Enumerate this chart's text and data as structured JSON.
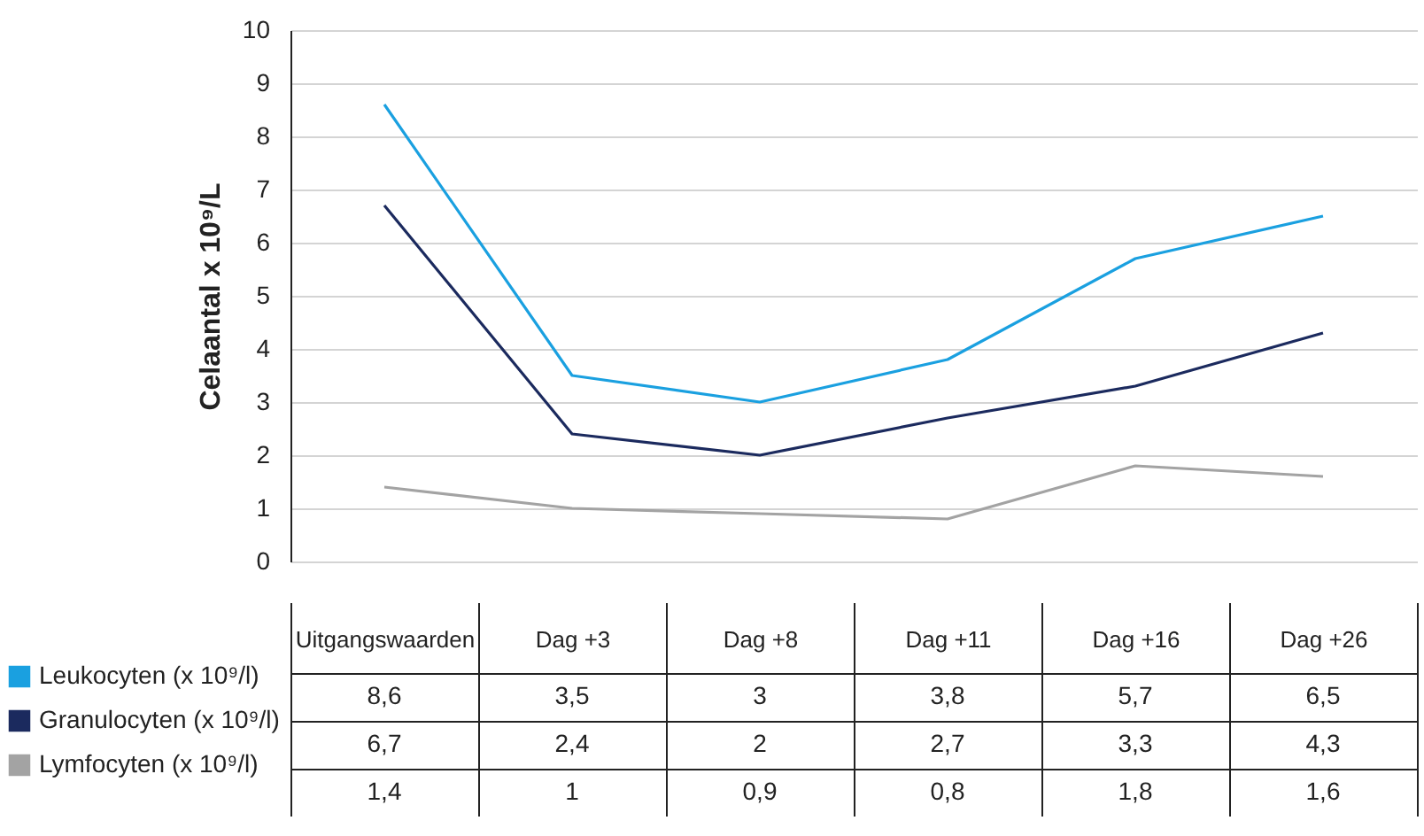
{
  "chart_data": {
    "type": "line",
    "ylabel": "Celaantal x 10⁹/L",
    "categories": [
      "Uitgangswaarden",
      "Dag +3",
      "Dag +8",
      "Dag +11",
      "Dag +16",
      "Dag +26"
    ],
    "series": [
      {
        "name": "Leukocyten (x 10⁹/l)",
        "color": "#1aa0e0",
        "values": [
          8.6,
          3.5,
          3,
          3.8,
          5.7,
          6.5
        ],
        "value_labels": [
          "8,6",
          "3,5",
          "3",
          "3,8",
          "5,7",
          "6,5"
        ]
      },
      {
        "name": "Granulocyten (x 10⁹/l)",
        "color": "#1b2a5e",
        "values": [
          6.7,
          2.4,
          2,
          2.7,
          3.3,
          4.3
        ],
        "value_labels": [
          "6,7",
          "2,4",
          "2",
          "2,7",
          "3,3",
          "4,3"
        ]
      },
      {
        "name": "Lymfocyten (x 10⁹/l)",
        "color": "#a3a3a3",
        "values": [
          1.4,
          1,
          0.9,
          0.8,
          1.8,
          1.6
        ],
        "value_labels": [
          "1,4",
          "1",
          "0,9",
          "0,8",
          "1,8",
          "1,6"
        ]
      }
    ],
    "ylim": [
      0,
      10
    ],
    "yticks": [
      0,
      1,
      2,
      3,
      4,
      5,
      6,
      7,
      8,
      9,
      10
    ],
    "grid": "y",
    "legend": "bottom left"
  }
}
